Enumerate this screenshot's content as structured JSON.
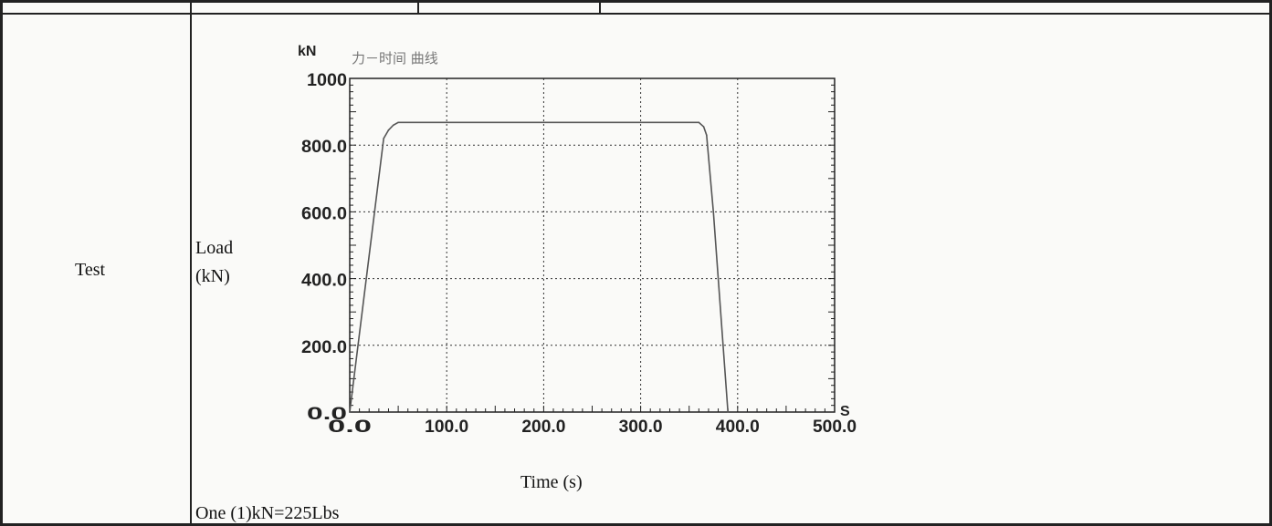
{
  "row": {
    "label": "Test",
    "ylabel_line1": "Load",
    "ylabel_line2": "(kN)",
    "xlabel": "Time (s)",
    "note": "One (1)kN=225Lbs"
  },
  "chart_data": {
    "type": "line",
    "title": "力－时间 曲线",
    "y_unit": "kN",
    "x_unit": "S",
    "xlim": [
      0,
      500
    ],
    "ylim": [
      0,
      1000
    ],
    "xticks": [
      "0.0",
      "100.0",
      "200.0",
      "300.0",
      "400.0",
      "500.0"
    ],
    "yticks": [
      "0.0",
      "200.0",
      "400.0",
      "600.0",
      "800.0",
      "1000"
    ],
    "grid": true,
    "series": [
      {
        "x": [
          0,
          35,
          40,
          45,
          50,
          360,
          365,
          368,
          375,
          385,
          390
        ],
        "y": [
          0,
          820,
          845,
          860,
          868,
          868,
          855,
          830,
          600,
          200,
          0
        ]
      }
    ],
    "colors": {
      "line": "#555555",
      "grid": "#333333",
      "frame": "#222222"
    }
  }
}
